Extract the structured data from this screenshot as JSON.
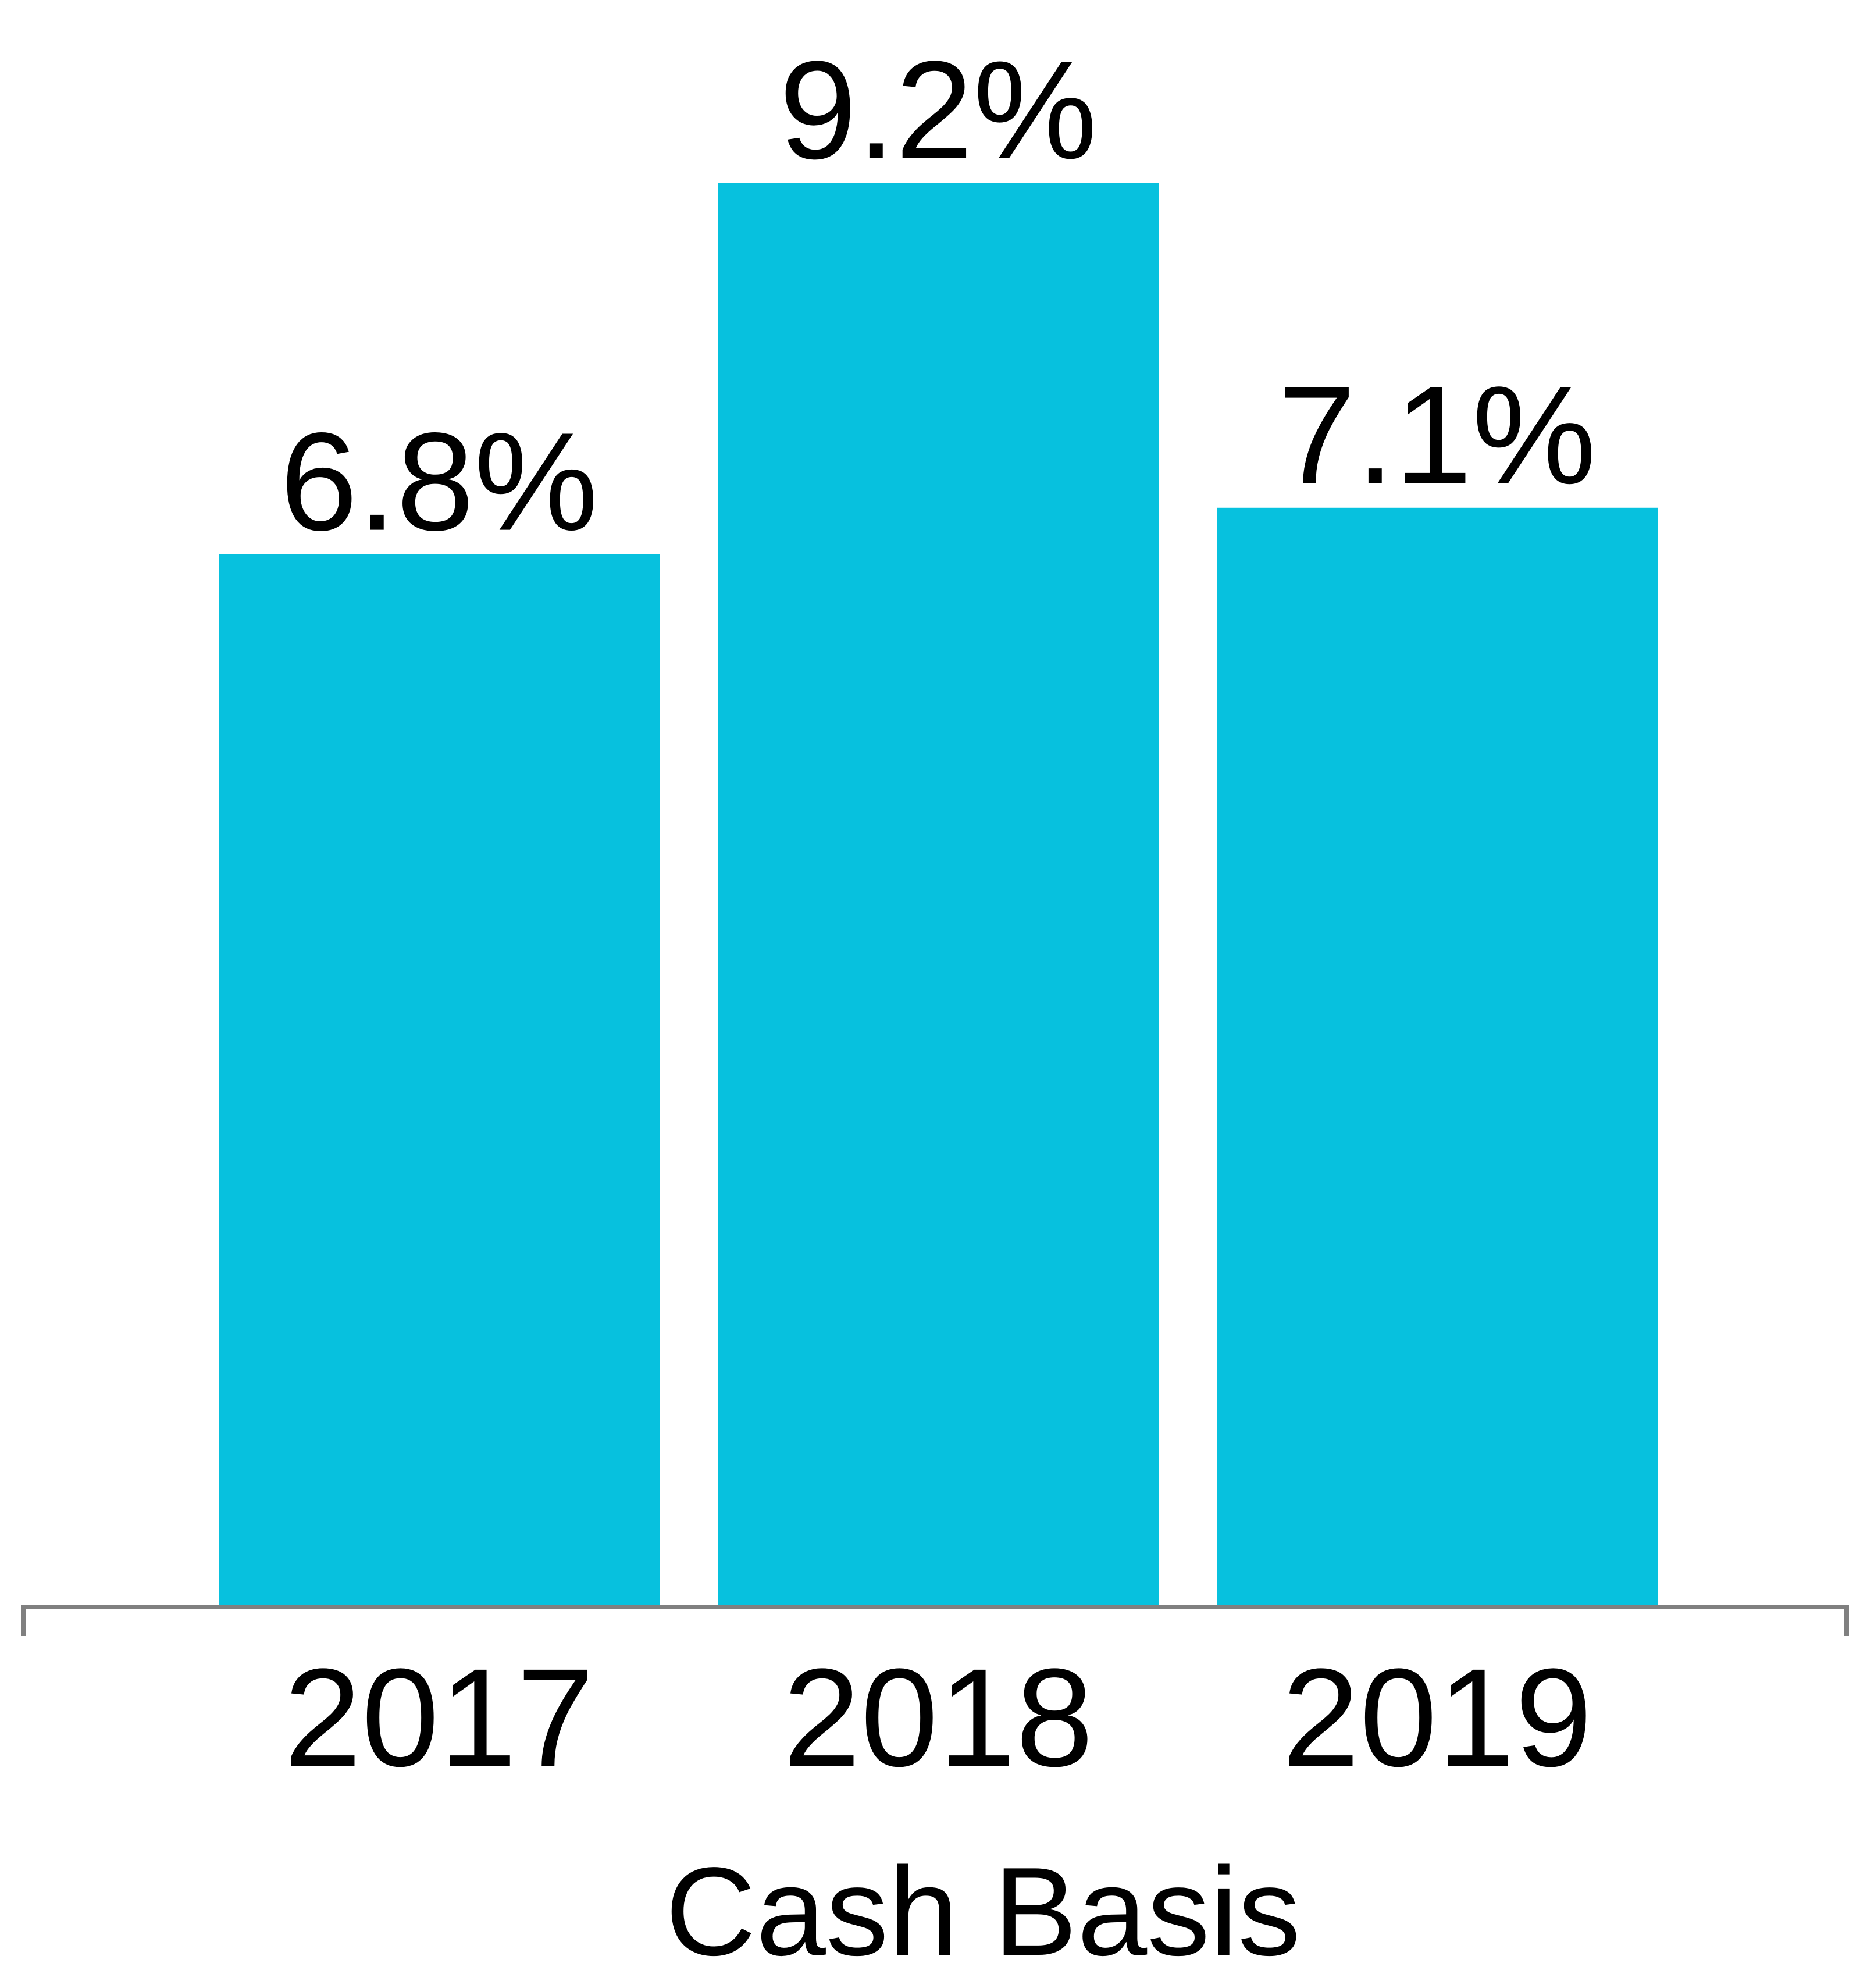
{
  "chart_data": {
    "type": "bar",
    "categories": [
      "2017",
      "2018",
      "2019"
    ],
    "values": [
      6.8,
      9.2,
      7.1
    ],
    "value_labels": [
      "6.8%",
      "9.2%",
      "7.1%"
    ],
    "xlabel": "Cash Basis",
    "ylabel": "",
    "ylim": [
      0,
      9.2
    ],
    "grid": false,
    "legend": "none",
    "colors": {
      "bar": "#07C1DE",
      "axis": "#808080",
      "text": "#000000"
    }
  }
}
